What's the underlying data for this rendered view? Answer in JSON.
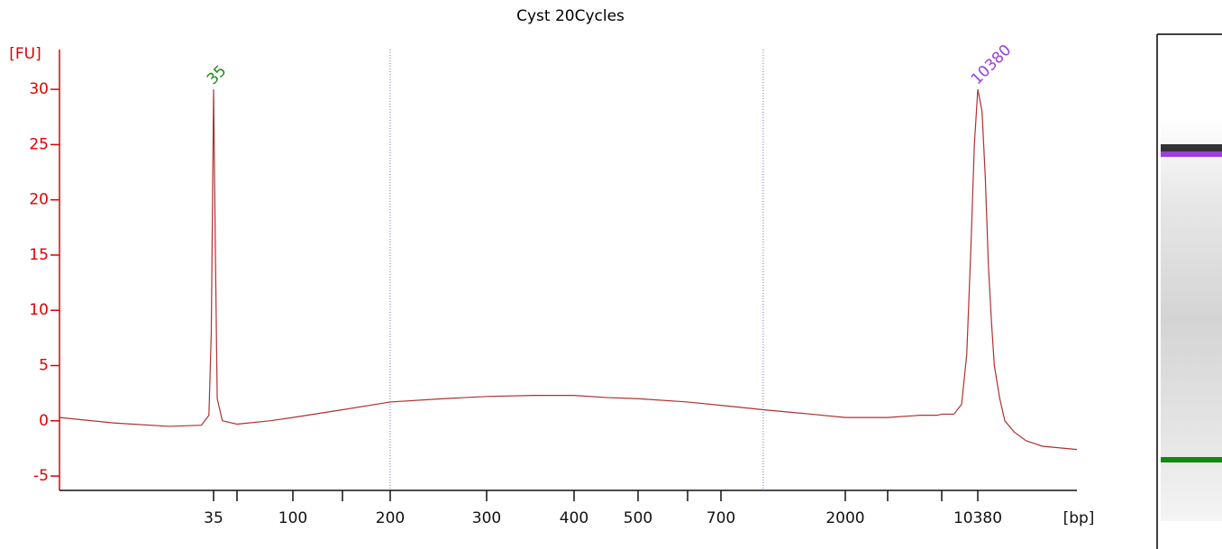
{
  "chart_data": {
    "type": "line",
    "title": "Cyst 20Cycles",
    "y_label": "[FU]",
    "x_label": "[bp]",
    "x": [
      5,
      10,
      20,
      30,
      33,
      34,
      35,
      36,
      37,
      40,
      50,
      75,
      100,
      150,
      200,
      250,
      300,
      350,
      400,
      450,
      500,
      600,
      700,
      1000,
      1500,
      2000,
      3000,
      5000,
      6500,
      7000,
      8000,
      8700,
      9200,
      9600,
      10000,
      10380,
      11000,
      11500,
      12000,
      12500,
      13000,
      14000,
      15000,
      17000,
      20000,
      25000,
      40000
    ],
    "values": [
      0.3,
      -0.2,
      -0.5,
      -0.4,
      0.5,
      8,
      30,
      15,
      2,
      0,
      -0.3,
      0,
      0.3,
      1.0,
      1.7,
      2.0,
      2.2,
      2.3,
      2.3,
      2.1,
      2.0,
      1.7,
      1.4,
      1.0,
      0.6,
      0.3,
      0.3,
      0.5,
      0.5,
      0.6,
      0.6,
      1.5,
      6,
      15,
      25,
      30,
      28,
      22,
      14,
      9,
      5,
      2,
      0,
      -1,
      -1.8,
      -2.3,
      -2.6
    ],
    "color": "#b03030",
    "xlim": [
      5,
      40000
    ],
    "xticks": [
      35,
      100,
      200,
      300,
      400,
      500,
      700,
      2000,
      10380
    ],
    "xticks_minor": [
      50,
      150,
      600,
      3000,
      7000
    ],
    "ylim": [
      -6.3,
      33.6
    ],
    "yticks": [
      -5,
      0,
      5,
      10,
      15,
      20,
      25,
      30
    ],
    "region_markers": [
      200,
      1000
    ],
    "peak_labels": [
      {
        "x": 35,
        "y": 30,
        "color": "#1a8c1a"
      },
      {
        "x": 10380,
        "y": 30,
        "color": "#9b3fe0"
      }
    ]
  }
}
